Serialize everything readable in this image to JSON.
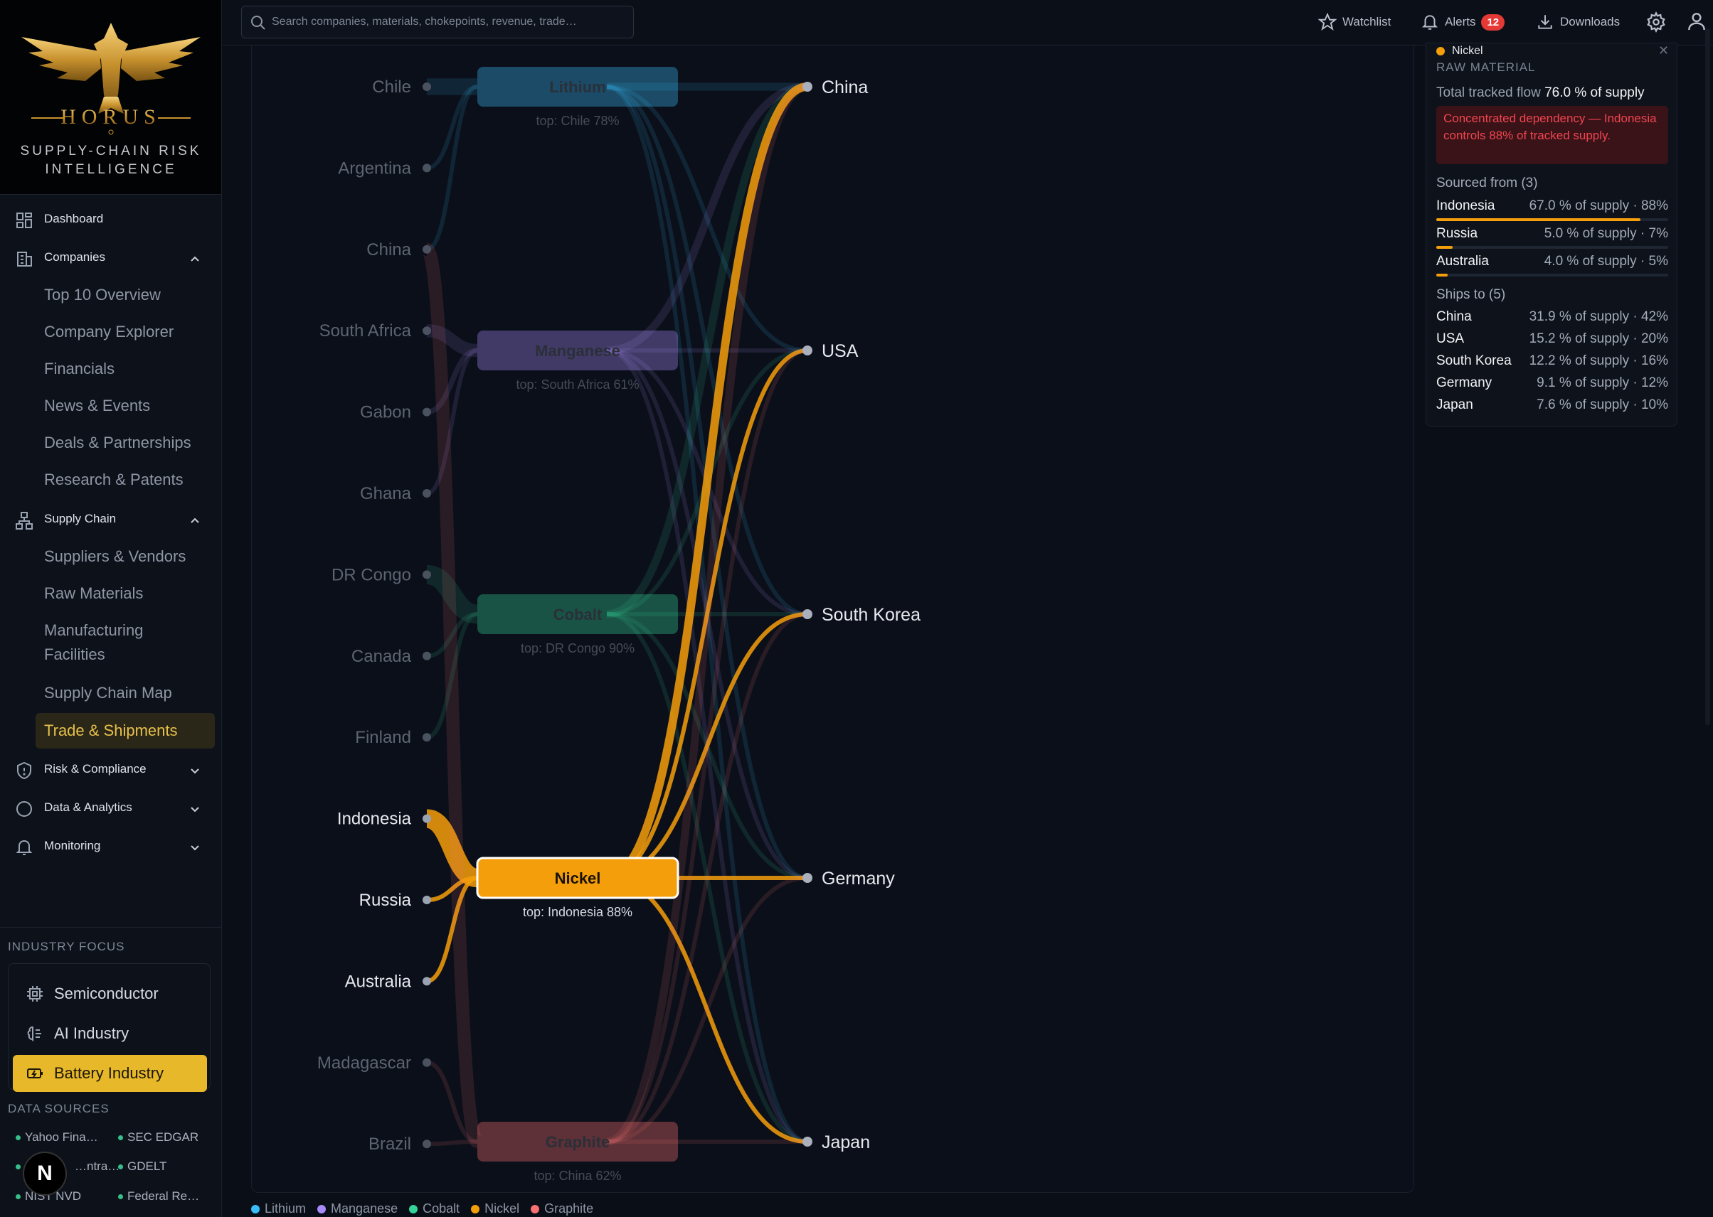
{
  "brand": {
    "name": "HORUS",
    "tagline_1": "SUPPLY-CHAIN RISK",
    "tagline_2": "INTELLIGENCE"
  },
  "search": {
    "placeholder": "Search companies, materials, chokepoints, revenue, trade…"
  },
  "topbar": {
    "watchlist": "Watchlist",
    "alerts": "Alerts",
    "alerts_count": "12",
    "downloads": "Downloads"
  },
  "nav": {
    "dashboard": "Dashboard",
    "companies": {
      "label": "Companies",
      "items": [
        "Top 10 Overview",
        "Company Explorer",
        "Financials",
        "News & Events",
        "Deals & Partnerships",
        "Research & Patents"
      ]
    },
    "supply_chain": {
      "label": "Supply Chain",
      "items": [
        "Suppliers & Vendors",
        "Raw Materials",
        "Manufacturing",
        "Facilities",
        "Supply Chain Map",
        "Trade & Shipments"
      ]
    },
    "risk": "Risk & Compliance",
    "data": "Data & Analytics",
    "monitoring": "Monitoring"
  },
  "industry": {
    "title": "INDUSTRY FOCUS",
    "items": [
      "Semiconductor",
      "AI Industry",
      "Battery Industry"
    ],
    "active": "Battery Industry"
  },
  "data_sources": {
    "title": "DATA SOURCES",
    "items": [
      "Yahoo Fina…",
      "SEC EDGAR",
      "…ntra…",
      "GDELT",
      "NIST NVD",
      "Federal Re…"
    ]
  },
  "n_badge": "N",
  "colors": {
    "lithium": "#38bdf8",
    "manganese": "#a78bfa",
    "cobalt": "#34d399",
    "nickel": "#f59e0b",
    "graphite": "#f87171",
    "accent": "#e6b82a"
  },
  "chart_data": {
    "type": "sankey",
    "sources": [
      "Chile",
      "Argentina",
      "China",
      "South Africa",
      "Gabon",
      "Ghana",
      "DR Congo",
      "Canada",
      "Finland",
      "Indonesia",
      "Russia",
      "Australia",
      "Madagascar",
      "Brazil"
    ],
    "materials": [
      {
        "name": "Lithium",
        "sub": "top: Chile 78%",
        "color": "#38bdf8"
      },
      {
        "name": "Manganese",
        "sub": "top: South Africa 61%",
        "color": "#a78bfa"
      },
      {
        "name": "Cobalt",
        "sub": "top: DR Congo 90%",
        "color": "#34d399"
      },
      {
        "name": "Nickel",
        "sub": "top: Indonesia 88%",
        "color": "#f59e0b",
        "selected": true
      },
      {
        "name": "Graphite",
        "sub": "top: China 62%",
        "color": "#f87171"
      }
    ],
    "destinations": [
      "China",
      "USA",
      "South Korea",
      "Germany",
      "Japan"
    ],
    "inflows": [
      {
        "from": "Chile",
        "to": "Lithium",
        "pct": 78
      },
      {
        "from": "Argentina",
        "to": "Lithium",
        "pct": 12
      },
      {
        "from": "China",
        "to": "Lithium",
        "pct": 10
      },
      {
        "from": "South Africa",
        "to": "Manganese",
        "pct": 61
      },
      {
        "from": "Gabon",
        "to": "Manganese",
        "pct": 25
      },
      {
        "from": "Ghana",
        "to": "Manganese",
        "pct": 14
      },
      {
        "from": "DR Congo",
        "to": "Cobalt",
        "pct": 90
      },
      {
        "from": "Canada",
        "to": "Cobalt",
        "pct": 5
      },
      {
        "from": "Finland",
        "to": "Cobalt",
        "pct": 5
      },
      {
        "from": "Indonesia",
        "to": "Nickel",
        "pct": 88
      },
      {
        "from": "Russia",
        "to": "Nickel",
        "pct": 7
      },
      {
        "from": "Australia",
        "to": "Nickel",
        "pct": 5
      },
      {
        "from": "China",
        "to": "Graphite",
        "pct": 62
      },
      {
        "from": "Madagascar",
        "to": "Graphite",
        "pct": 20
      },
      {
        "from": "Brazil",
        "to": "Graphite",
        "pct": 18
      }
    ],
    "outflows": [
      {
        "from": "Lithium",
        "to": "China",
        "pct": 40
      },
      {
        "from": "Lithium",
        "to": "USA",
        "pct": 20
      },
      {
        "from": "Lithium",
        "to": "South Korea",
        "pct": 15
      },
      {
        "from": "Lithium",
        "to": "Germany",
        "pct": 12
      },
      {
        "from": "Lithium",
        "to": "Japan",
        "pct": 13
      },
      {
        "from": "Manganese",
        "to": "China",
        "pct": 40
      },
      {
        "from": "Manganese",
        "to": "USA",
        "pct": 20
      },
      {
        "from": "Manganese",
        "to": "South Korea",
        "pct": 15
      },
      {
        "from": "Manganese",
        "to": "Germany",
        "pct": 12
      },
      {
        "from": "Manganese",
        "to": "Japan",
        "pct": 13
      },
      {
        "from": "Cobalt",
        "to": "China",
        "pct": 40
      },
      {
        "from": "Cobalt",
        "to": "USA",
        "pct": 15
      },
      {
        "from": "Cobalt",
        "to": "South Korea",
        "pct": 20
      },
      {
        "from": "Cobalt",
        "to": "Germany",
        "pct": 12
      },
      {
        "from": "Cobalt",
        "to": "Japan",
        "pct": 13
      },
      {
        "from": "Nickel",
        "to": "China",
        "pct": 42
      },
      {
        "from": "Nickel",
        "to": "USA",
        "pct": 20
      },
      {
        "from": "Nickel",
        "to": "South Korea",
        "pct": 16
      },
      {
        "from": "Nickel",
        "to": "Germany",
        "pct": 12
      },
      {
        "from": "Nickel",
        "to": "Japan",
        "pct": 10
      },
      {
        "from": "Graphite",
        "to": "China",
        "pct": 40
      },
      {
        "from": "Graphite",
        "to": "USA",
        "pct": 15
      },
      {
        "from": "Graphite",
        "to": "South Korea",
        "pct": 15
      },
      {
        "from": "Graphite",
        "to": "Germany",
        "pct": 15
      },
      {
        "from": "Graphite",
        "to": "Japan",
        "pct": 15
      }
    ],
    "legend": [
      "Lithium",
      "Manganese",
      "Cobalt",
      "Nickel",
      "Graphite"
    ]
  },
  "detail": {
    "name": "Nickel",
    "type": "RAW MATERIAL",
    "total_label": "Total tracked flow",
    "total_value": "76.0 % of supply",
    "alert": "Concentrated dependency — Indonesia controls 88% of tracked supply.",
    "sourced_title": "Sourced from (3)",
    "sourced": [
      {
        "country": "Indonesia",
        "value": "67.0 % of supply · 88%",
        "share": 0.88
      },
      {
        "country": "Russia",
        "value": "5.0 % of supply · 7%",
        "share": 0.07
      },
      {
        "country": "Australia",
        "value": "4.0 % of supply · 5%",
        "share": 0.05
      }
    ],
    "ships_title": "Ships to (5)",
    "ships": [
      {
        "country": "China",
        "value": "31.9 % of supply · 42%"
      },
      {
        "country": "USA",
        "value": "15.2 % of supply · 20%"
      },
      {
        "country": "South Korea",
        "value": "12.2 % of supply · 16%"
      },
      {
        "country": "Germany",
        "value": "9.1 % of supply · 12%"
      },
      {
        "country": "Japan",
        "value": "7.6 % of supply · 10%"
      }
    ]
  }
}
